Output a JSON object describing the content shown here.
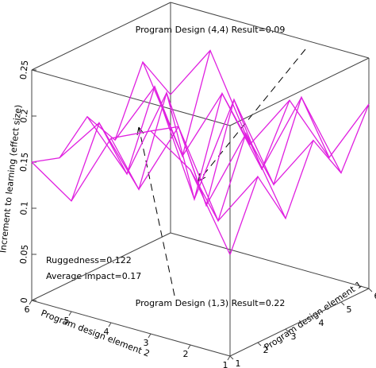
{
  "chart_data": {
    "type": "surface3d",
    "xlabel": "Program design element 1",
    "ylabel": "Program design element 2",
    "zlabel": "Increment to learning (effect size)",
    "xlim": [
      1,
      6
    ],
    "xticks": [
      1,
      2,
      3,
      4,
      5,
      6
    ],
    "ylim": [
      1,
      6
    ],
    "yticks": [
      1,
      2,
      3,
      4,
      5,
      6
    ],
    "zlim": [
      0,
      0.25
    ],
    "zticks": [
      0,
      0.05,
      0.1,
      0.15,
      0.2,
      0.25
    ],
    "color": "#e020e0",
    "z": [
      [
        0.11,
        0.19,
        0.22,
        0.2,
        0.12,
        0.15
      ],
      [
        0.18,
        0.12,
        0.21,
        0.13,
        0.19,
        0.14
      ],
      [
        0.12,
        0.2,
        0.11,
        0.22,
        0.12,
        0.17
      ],
      [
        0.19,
        0.13,
        0.21,
        0.09,
        0.2,
        0.13
      ],
      [
        0.14,
        0.21,
        0.12,
        0.19,
        0.11,
        0.2
      ],
      [
        0.2,
        0.13,
        0.18,
        0.12,
        0.21,
        0.15
      ]
    ],
    "annotations": [
      "Program Design (4,4) Result=0.09",
      "Program Design (1,3) Result=0.22",
      "Ruggedness=0.122",
      "Average impact=0.17"
    ]
  }
}
